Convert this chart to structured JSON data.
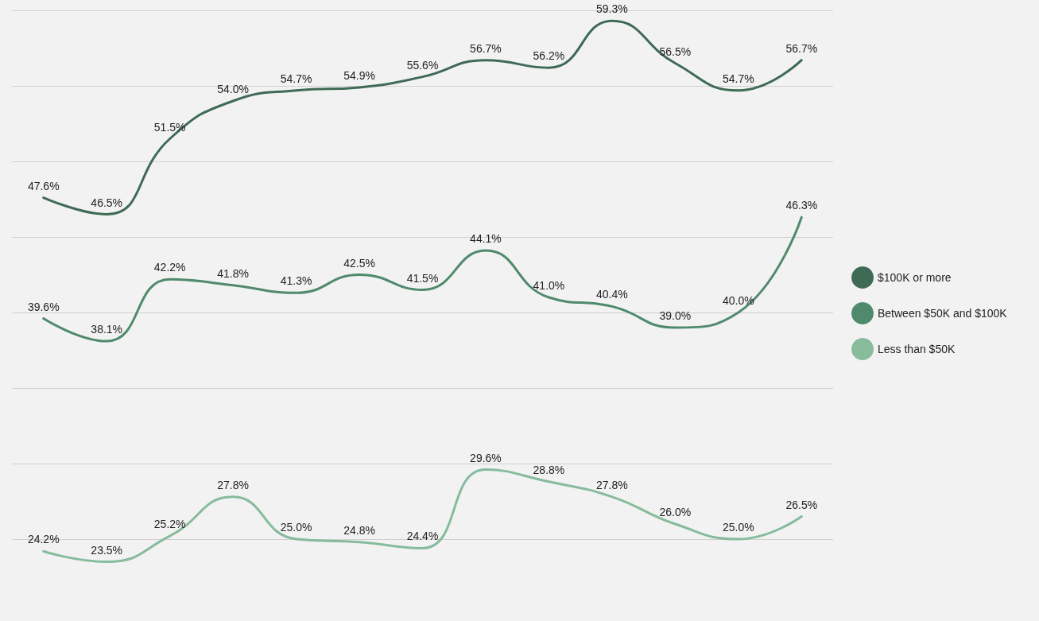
{
  "chart_data": {
    "type": "line",
    "categories": [
      null,
      null,
      null,
      null,
      null,
      null,
      null,
      null,
      null,
      null,
      null,
      null,
      null
    ],
    "series": [
      {
        "name": "$100K or more",
        "color": "#3f6b56",
        "values": [
          47.6,
          46.5,
          51.5,
          54.0,
          54.7,
          54.9,
          55.6,
          56.7,
          56.2,
          59.3,
          56.5,
          54.7,
          56.7
        ],
        "value_labels": [
          "47.6%",
          "46.5%",
          "51.5%",
          "54.0%",
          "54.7%",
          "54.9%",
          "55.6%",
          "56.7%",
          "56.2%",
          "59.3%",
          "56.5%",
          "54.7%",
          "56.7%"
        ]
      },
      {
        "name": "Between $50K and $100K",
        "color": "#4f8a6c",
        "values": [
          39.6,
          38.1,
          42.2,
          41.8,
          41.3,
          42.5,
          41.5,
          44.1,
          41.0,
          40.4,
          39.0,
          40.0,
          46.3
        ],
        "value_labels": [
          "39.6%",
          "38.1%",
          "42.2%",
          "41.8%",
          "41.3%",
          "42.5%",
          "41.5%",
          "44.1%",
          "41.0%",
          "40.4%",
          "39.0%",
          "40.0%",
          "46.3%"
        ]
      },
      {
        "name": "Less than $50K",
        "color": "#86bb9c",
        "values": [
          24.2,
          23.5,
          25.2,
          27.8,
          25.0,
          24.8,
          24.4,
          29.6,
          28.8,
          27.8,
          26.0,
          25.0,
          26.5
        ],
        "value_labels": [
          "24.2%",
          "23.5%",
          "25.2%",
          "27.8%",
          "25.0%",
          "24.8%",
          "24.4%",
          "29.6%",
          "28.8%",
          "27.8%",
          "26.0%",
          "25.0%",
          "26.5%"
        ]
      }
    ],
    "yticks": [
      {
        "value": 25,
        "label": null
      },
      {
        "value": 30,
        "label": null
      },
      {
        "value": 35,
        "label": null
      },
      {
        "value": 40,
        "label": null
      },
      {
        "value": 45,
        "label": null
      },
      {
        "value": 50,
        "label": null
      },
      {
        "value": 55,
        "label": null
      },
      {
        "value": 60,
        "label": null
      }
    ],
    "grid": "y",
    "legend": "right",
    "marker": "none",
    "line_style": "solid"
  }
}
